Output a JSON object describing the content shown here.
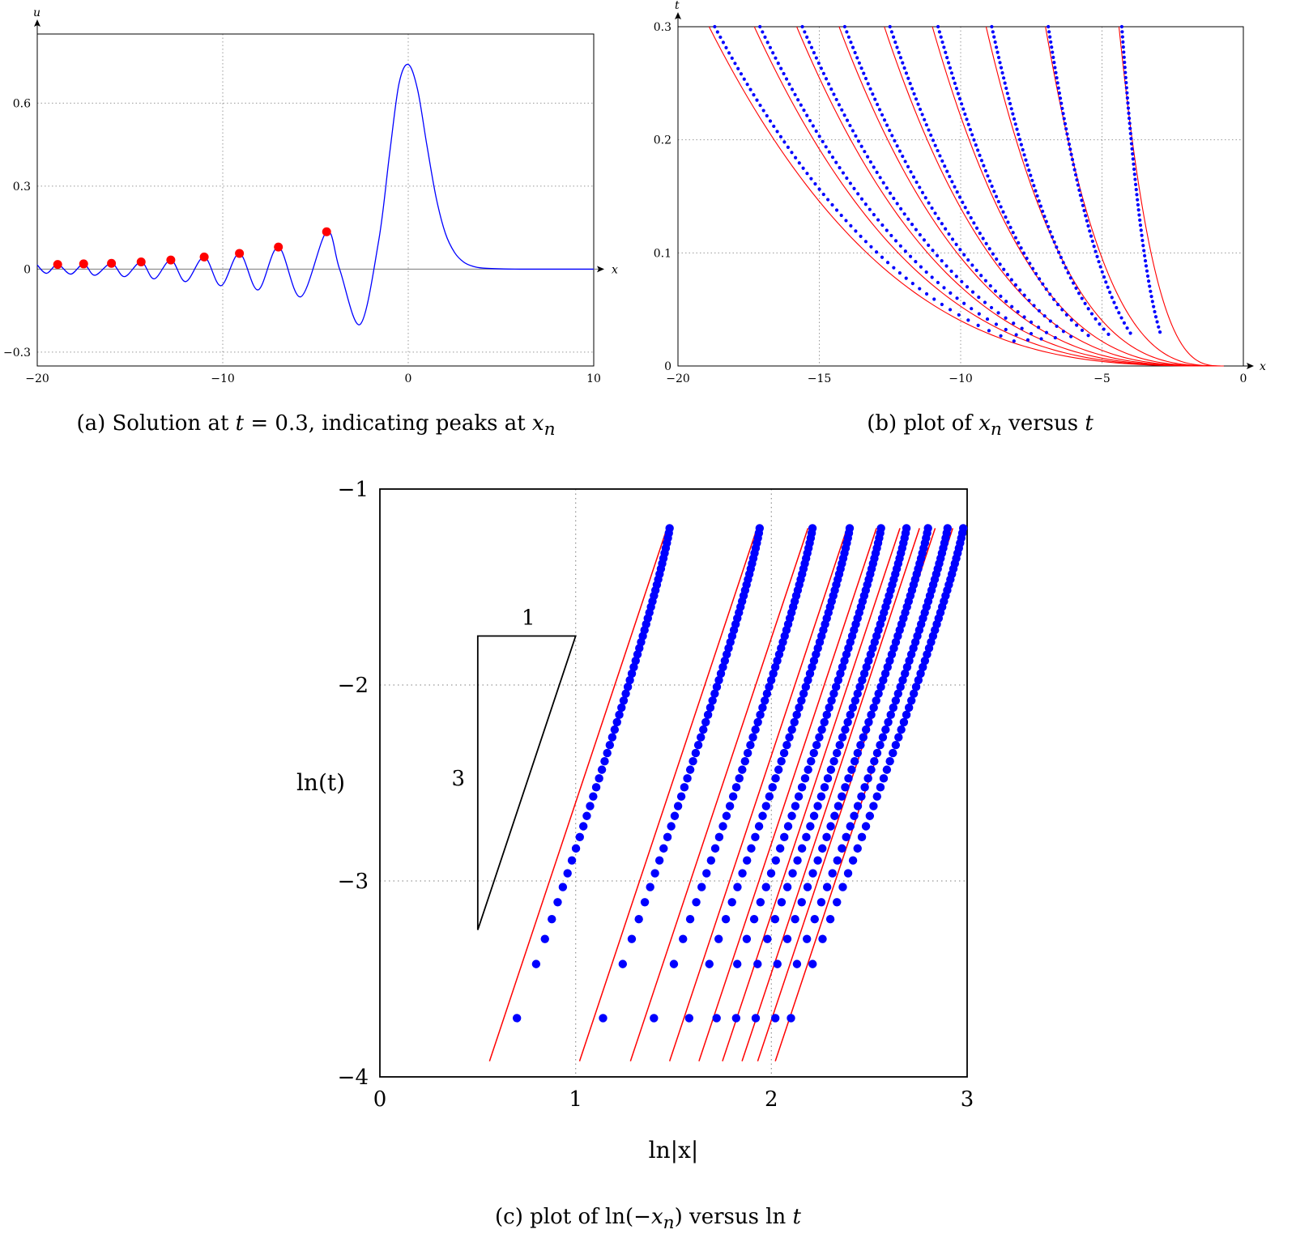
{
  "captions": {
    "a_prefix": "(a) Solution at ",
    "a_t": "t",
    "a_mid": " = 0.3, indicating peaks at ",
    "a_x": "x",
    "a_n": "n",
    "b_prefix": "(b) plot of ",
    "b_x": "x",
    "b_n": "n",
    "b_mid": " versus ",
    "b_t": "t",
    "c_prefix": "(c) plot of ln(−",
    "c_x": "x",
    "c_n": "n",
    "c_mid": ") versus ln ",
    "c_t": "t"
  },
  "colors": {
    "solution_curve": "#0000ff",
    "peaks": "#ff0000",
    "fit_lines": "#ff0000",
    "data_points": "#0000ff",
    "grid": "#999999",
    "axis": "#000000"
  },
  "chart_data": [
    {
      "id": "a",
      "type": "line",
      "xlabel": "x",
      "ylabel": "u",
      "xlim": [
        -20,
        10
      ],
      "ylim": [
        -0.35,
        0.85
      ],
      "xticks": [
        -20,
        -10,
        0,
        10
      ],
      "xtick_labels": [
        "−20",
        "−10",
        "0",
        "10"
      ],
      "yticks": [
        -0.3,
        0,
        0.3,
        0.6
      ],
      "ytick_labels": [
        "−0.3",
        "0",
        "0.3",
        "0.6"
      ],
      "grid": true,
      "series": [
        {
          "style": "line",
          "x": [
            -20,
            -19.5,
            -18.9,
            -18.2,
            -17.5,
            -16.9,
            -16.0,
            -15.3,
            -14.4,
            -13.7,
            -12.8,
            -12.0,
            -11.0,
            -10.1,
            -9.1,
            -8.1,
            -7.0,
            -5.8,
            -4.4,
            -3.7,
            -2.6,
            -1.6,
            -1.0,
            -0.5,
            0.0,
            0.5,
            1.0,
            1.5,
            2.0,
            2.5,
            3.0,
            3.5,
            4.0,
            5.0,
            6.0,
            10.0
          ],
          "y": [
            0.015,
            -0.015,
            0.017,
            -0.018,
            0.019,
            -0.022,
            0.021,
            -0.027,
            0.026,
            -0.035,
            0.033,
            -0.045,
            0.044,
            -0.06,
            0.057,
            -0.075,
            0.08,
            -0.1,
            0.135,
            0.0,
            -0.2,
            0.1,
            0.42,
            0.67,
            0.74,
            0.65,
            0.45,
            0.26,
            0.13,
            0.06,
            0.025,
            0.01,
            0.004,
            0.001,
            0.0,
            0.0
          ]
        },
        {
          "style": "markers",
          "x": [
            -18.9,
            -17.5,
            -16.0,
            -14.4,
            -12.8,
            -11.0,
            -9.1,
            -7.0,
            -4.4
          ],
          "y": [
            0.017,
            0.019,
            0.021,
            0.026,
            0.033,
            0.044,
            0.057,
            0.08,
            0.135
          ]
        }
      ]
    },
    {
      "id": "b",
      "type": "line",
      "xlabel": "x",
      "ylabel": "t",
      "xlim": [
        -20,
        0
      ],
      "ylim": [
        0,
        0.3
      ],
      "xticks": [
        -20,
        -15,
        -10,
        -5,
        0
      ],
      "xtick_labels": [
        "−20",
        "−15",
        "−10",
        "−5",
        "0"
      ],
      "yticks": [
        0,
        0.1,
        0.2,
        0.3
      ],
      "ytick_labels": [
        "0",
        "0.1",
        "0.2",
        "0.3"
      ],
      "grid": true,
      "x_at_top": [
        -18.9,
        -17.3,
        -15.8,
        -14.3,
        -12.7,
        -11.0,
        -9.1,
        -7.0,
        -4.4
      ],
      "x_at_top_dots": [
        -18.7,
        -17.1,
        -15.6,
        -14.1,
        -12.5,
        -10.8,
        -8.9,
        -6.9,
        -4.3
      ],
      "fit_x0": -0.7,
      "dot_x0": -2.0,
      "dot_t_start": 0.022,
      "series": [
        {
          "style": "line",
          "desc": "fit curves, t proportional to |x|^3 per peak"
        },
        {
          "style": "dots",
          "desc": "numerical peak positions x_n(t)"
        }
      ]
    },
    {
      "id": "c",
      "type": "scatter",
      "xlabel": "ln|x|",
      "ylabel": "ln(t)",
      "xlim": [
        0,
        3
      ],
      "ylim": [
        -4,
        -1
      ],
      "xticks": [
        0,
        1,
        2,
        3
      ],
      "xtick_labels": [
        "0",
        "1",
        "2",
        "3"
      ],
      "yticks": [
        -4,
        -3,
        -2,
        -1
      ],
      "ytick_labels": [
        "−4",
        "−3",
        "−2",
        "−1"
      ],
      "grid": true,
      "slope_triangle": {
        "run_label": "1",
        "rise_label": "3",
        "x": [
          0.5,
          1.0
        ],
        "y_top": -1.75,
        "y_bottom": -3.25
      },
      "line_bottom_x": [
        0.56,
        1.02,
        1.28,
        1.48,
        1.63,
        1.75,
        1.85,
        1.93,
        2.02
      ],
      "line_y_range": [
        -3.92,
        -1.2
      ],
      "dot_top_x": [
        1.48,
        1.94,
        2.21,
        2.4,
        2.56,
        2.69,
        2.8,
        2.9,
        2.98
      ],
      "dot_bottom": [
        [
          0.7,
          -3.7
        ],
        [
          1.14,
          -3.7
        ],
        [
          1.4,
          -3.7
        ],
        [
          1.58,
          -3.7
        ],
        [
          1.72,
          -3.7
        ],
        [
          1.82,
          -3.7
        ],
        [
          1.92,
          -3.7
        ],
        [
          2.02,
          -3.7
        ],
        [
          2.1,
          -3.7
        ]
      ],
      "dot_y_top": -1.2
    }
  ]
}
